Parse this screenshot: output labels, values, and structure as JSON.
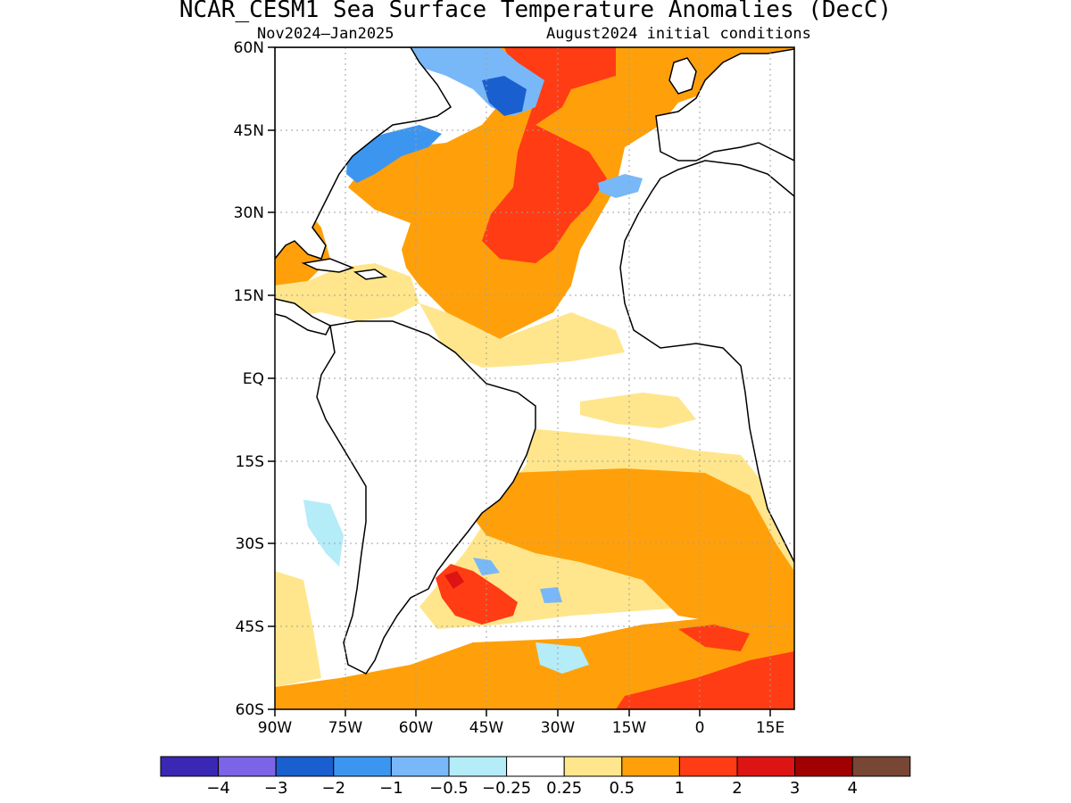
{
  "title": "NCAR_CESM1 Sea Surface Temperature Anomalies (DecC)",
  "subtitle_left": "Nov2024–Jan2025",
  "subtitle_right": "August2024 initial conditions",
  "lat_labels": [
    "60N",
    "45N",
    "30N",
    "15N",
    "EQ",
    "15S",
    "30S",
    "45S",
    "60S"
  ],
  "lon_labels": [
    "90W",
    "75W",
    "60W",
    "45W",
    "30W",
    "15W",
    "0",
    "15E"
  ],
  "colorbar": {
    "colors": [
      "#3a28b4",
      "#7c64e8",
      "#1a5fd0",
      "#3c96f0",
      "#78b8f8",
      "#b4ecf8",
      "#ffffff",
      "#ffe68c",
      "#ffa00a",
      "#ff3c14",
      "#dc1414",
      "#a00000",
      "#784634"
    ],
    "labels": [
      "−4",
      "−3",
      "−2",
      "−1",
      "−0.5",
      "−0.25",
      "0.25",
      "0.5",
      "1",
      "2",
      "3",
      "4"
    ]
  },
  "colors": {
    "gridline": "#a0a0a0",
    "coastline": "#000000",
    "land": "#ffffff"
  }
}
